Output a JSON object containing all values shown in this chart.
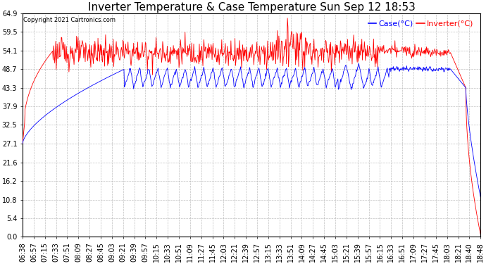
{
  "title": "Inverter Temperature & Case Temperature Sun Sep 12 18:53",
  "copyright": "Copyright 2021 Cartronics.com",
  "y_ticks": [
    0.0,
    5.4,
    10.8,
    16.2,
    21.6,
    27.1,
    32.5,
    37.9,
    43.3,
    48.7,
    54.1,
    59.5,
    64.9
  ],
  "y_min": 0.0,
  "y_max": 64.9,
  "x_labels": [
    "06:38",
    "06:57",
    "07:15",
    "07:33",
    "07:51",
    "08:09",
    "08:27",
    "08:45",
    "09:03",
    "09:21",
    "09:39",
    "09:57",
    "10:15",
    "10:33",
    "10:51",
    "11:09",
    "11:27",
    "11:45",
    "12:03",
    "12:21",
    "12:39",
    "12:57",
    "13:15",
    "13:33",
    "13:51",
    "14:09",
    "14:27",
    "14:45",
    "15:03",
    "15:21",
    "15:39",
    "15:57",
    "16:15",
    "16:33",
    "16:51",
    "17:09",
    "17:27",
    "17:45",
    "18:03",
    "18:21",
    "18:40",
    "18:48"
  ],
  "case_color": "#0000ff",
  "inverter_color": "#ff0000",
  "background_color": "#ffffff",
  "grid_color": "#b0b0b0",
  "title_fontsize": 11,
  "legend_fontsize": 8,
  "tick_fontsize": 7
}
